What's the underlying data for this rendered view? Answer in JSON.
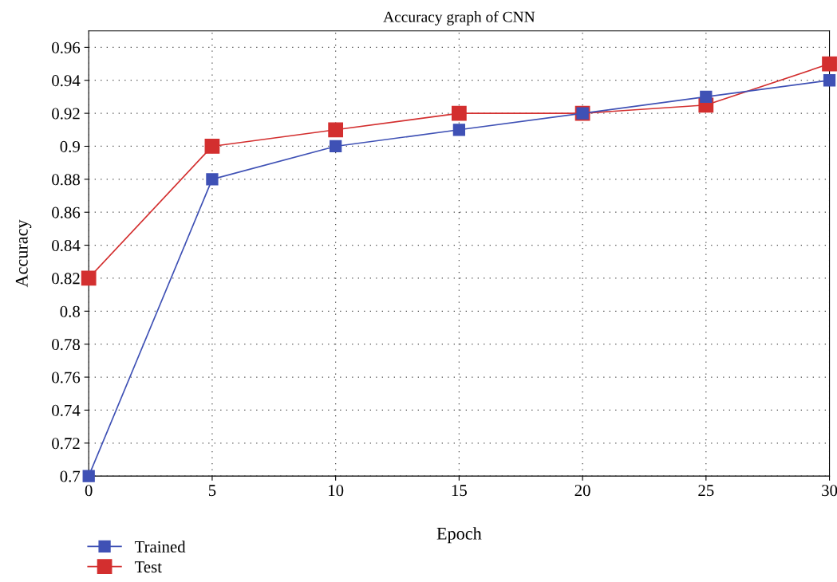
{
  "chart_data": {
    "type": "line",
    "title": "Accuracy graph of CNN",
    "xlabel": "Epoch",
    "ylabel": "Accuracy",
    "x": [
      0,
      5,
      10,
      15,
      20,
      25,
      30
    ],
    "series": [
      {
        "name": "Trained",
        "color": "#3f51b5",
        "values": [
          0.7,
          0.88,
          0.9,
          0.91,
          0.92,
          0.93,
          0.94
        ]
      },
      {
        "name": "Test",
        "color": "#d32f2f",
        "values": [
          0.82,
          0.9,
          0.91,
          0.92,
          0.92,
          0.925,
          0.95
        ]
      }
    ],
    "xlim": [
      0,
      30
    ],
    "xticks": [
      0,
      5,
      10,
      15,
      20,
      25,
      30
    ],
    "ylim": [
      0.7,
      0.97
    ],
    "yticks": [
      0.7,
      0.72,
      0.74,
      0.76,
      0.78,
      0.8,
      0.82,
      0.84,
      0.86,
      0.88,
      0.9,
      0.92,
      0.94,
      0.96
    ],
    "grid": true,
    "legend": "bottom left",
    "marker": "square",
    "line_style": "solid"
  }
}
